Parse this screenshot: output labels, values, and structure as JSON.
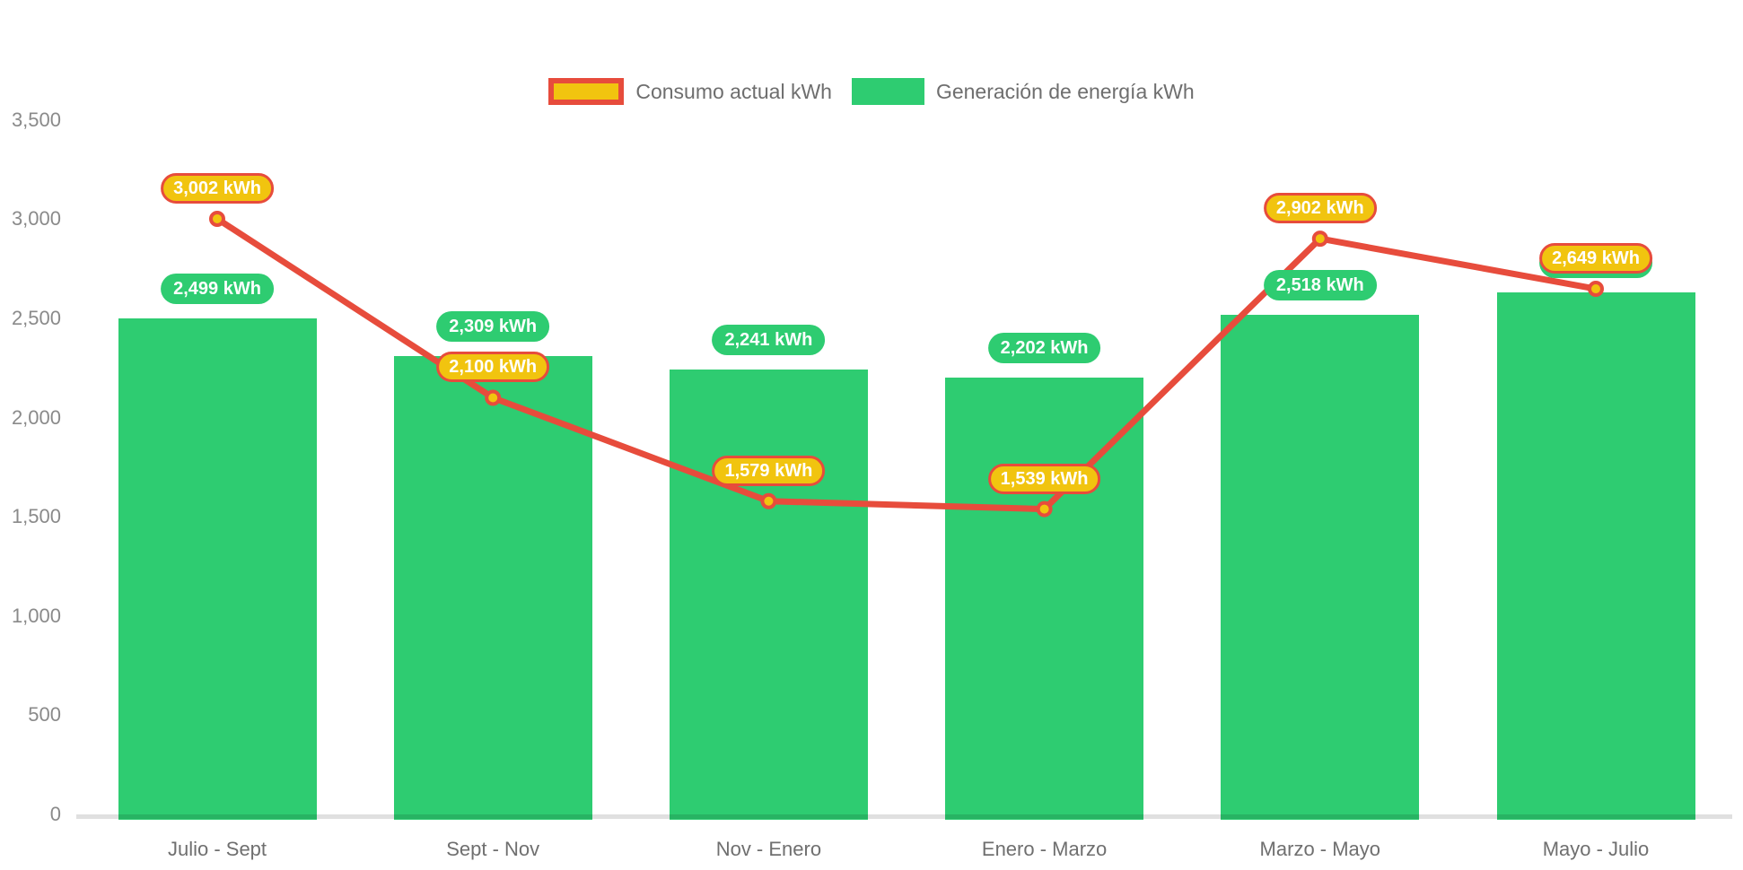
{
  "legend": {
    "consumo_label": "Consumo actual kWh",
    "generacion_label": "Generación de energía kWh"
  },
  "colors": {
    "bar_green": "#2ECC71",
    "line_red": "#E74C3C",
    "marker_yellow": "#F1C40F",
    "y_tick_text": "#8a8a8a",
    "x_label_text": "#6f6f6f",
    "legend_text": "#6e6e6e",
    "pill_text": "#ffffff"
  },
  "chart_data": {
    "type": "combo-bar-line",
    "categories": [
      "Julio - Sept",
      "Sept - Nov",
      "Nov - Enero",
      "Enero - Marzo",
      "Marzo - Mayo",
      "Mayo - Julio"
    ],
    "series": [
      {
        "name": "Consumo actual kWh",
        "type": "line",
        "color": "#E74C3C",
        "marker_fill": "#F1C40F",
        "values": [
          3002,
          2100,
          1579,
          1539,
          2902,
          2649
        ],
        "labels": [
          "3,002 kWh",
          "2,100 kWh",
          "1,579 kWh",
          "1,539 kWh",
          "2,902 kWh",
          "2,649 kWh"
        ]
      },
      {
        "name": "Generación de energía kWh",
        "type": "bar",
        "color": "#2ECC71",
        "values": [
          2499,
          2309,
          2241,
          2202,
          2518,
          2630
        ],
        "labels": [
          "2,499 kWh",
          "2,309 kWh",
          "2,241 kWh",
          "2,202 kWh",
          "2,518 kWh",
          "2,630 kWh"
        ],
        "last_label_hidden_behind_line_label": true,
        "last_value_estimated_from_bar_height": true
      }
    ],
    "y_axis": {
      "min": 0,
      "max": 3500,
      "step": 500,
      "ticks_top_to_bottom": [
        {
          "label": "3,500",
          "value": 3500
        },
        {
          "label": "3,000",
          "value": 3000
        },
        {
          "label": "2,500",
          "value": 2500
        },
        {
          "label": "2,000",
          "value": 2000
        },
        {
          "label": "1,500",
          "value": 1500
        },
        {
          "label": "1,000",
          "value": 1000
        },
        {
          "label": "500",
          "value": 500
        },
        {
          "label": "0",
          "value": 0
        }
      ]
    },
    "xlabel": "",
    "ylabel": "",
    "grid": false,
    "legend_position": "top-center"
  }
}
